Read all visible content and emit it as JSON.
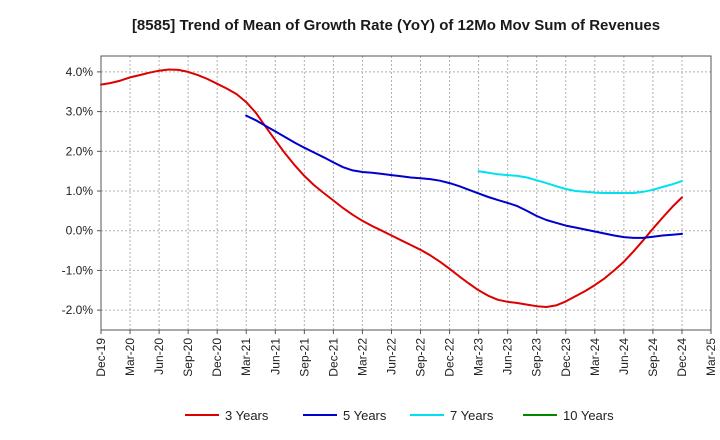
{
  "chart_data": {
    "type": "line",
    "title": "[8585]  Trend of Mean of Growth Rate (YoY) of 12Mo Mov Sum of Revenues",
    "xlabel": "",
    "ylabel": "",
    "x_tick_labels": [
      "Dec-19",
      "Mar-20",
      "Jun-20",
      "Sep-20",
      "Dec-20",
      "Mar-21",
      "Jun-21",
      "Sep-21",
      "Dec-21",
      "Mar-22",
      "Jun-22",
      "Sep-22",
      "Dec-22",
      "Mar-23",
      "Jun-23",
      "Sep-23",
      "Dec-23",
      "Mar-24",
      "Jun-24",
      "Sep-24",
      "Dec-24",
      "Mar-25"
    ],
    "x_range": [
      0,
      63
    ],
    "ylim": [
      -2.5,
      4.4
    ],
    "y_ticks": [
      -2.0,
      -1.0,
      0.0,
      1.0,
      2.0,
      3.0,
      4.0
    ],
    "y_tick_labels": [
      "-2.0%",
      "-1.0%",
      "0.0%",
      "1.0%",
      "2.0%",
      "3.0%",
      "4.0%"
    ],
    "grid": true,
    "legend_position": "bottom",
    "series": [
      {
        "name": "3 Years",
        "color": "#dd0000",
        "x": [
          0,
          1,
          2,
          3,
          4,
          5,
          6,
          7,
          8,
          9,
          10,
          11,
          12,
          13,
          14,
          15,
          16,
          17,
          18,
          19,
          20,
          21,
          22,
          23,
          24,
          25,
          26,
          27,
          28,
          29,
          30,
          31,
          32,
          33,
          34,
          35,
          36,
          37,
          38,
          39,
          40,
          41,
          42,
          43,
          44,
          45,
          46,
          47,
          48,
          49,
          50,
          51,
          52,
          53,
          54,
          55,
          56,
          57,
          58,
          59,
          60
        ],
        "values": [
          3.68,
          3.72,
          3.78,
          3.86,
          3.92,
          3.98,
          4.03,
          4.06,
          4.05,
          4.0,
          3.92,
          3.82,
          3.7,
          3.58,
          3.44,
          3.24,
          2.97,
          2.62,
          2.28,
          1.95,
          1.65,
          1.38,
          1.15,
          0.95,
          0.76,
          0.57,
          0.4,
          0.25,
          0.12,
          0.0,
          -0.12,
          -0.24,
          -0.36,
          -0.48,
          -0.62,
          -0.78,
          -0.96,
          -1.15,
          -1.33,
          -1.5,
          -1.64,
          -1.74,
          -1.79,
          -1.82,
          -1.86,
          -1.9,
          -1.92,
          -1.88,
          -1.78,
          -1.65,
          -1.52,
          -1.37,
          -1.2,
          -1.0,
          -0.78,
          -0.52,
          -0.24,
          0.05,
          0.33,
          0.6,
          0.84
        ]
      },
      {
        "name": "5 Years",
        "color": "#0000cc",
        "x": [
          15,
          16,
          17,
          18,
          19,
          20,
          21,
          22,
          23,
          24,
          25,
          26,
          27,
          28,
          29,
          30,
          31,
          32,
          33,
          34,
          35,
          36,
          37,
          38,
          39,
          40,
          41,
          42,
          43,
          44,
          45,
          46,
          47,
          48,
          49,
          50,
          51,
          52,
          53,
          54,
          55,
          56,
          57,
          58,
          59,
          60
        ],
        "values": [
          2.9,
          2.78,
          2.64,
          2.5,
          2.36,
          2.22,
          2.09,
          1.97,
          1.85,
          1.72,
          1.6,
          1.52,
          1.48,
          1.46,
          1.43,
          1.4,
          1.37,
          1.34,
          1.32,
          1.3,
          1.26,
          1.2,
          1.12,
          1.03,
          0.94,
          0.85,
          0.77,
          0.7,
          0.62,
          0.5,
          0.37,
          0.27,
          0.2,
          0.13,
          0.08,
          0.03,
          -0.02,
          -0.07,
          -0.12,
          -0.16,
          -0.18,
          -0.18,
          -0.15,
          -0.12,
          -0.1,
          -0.08
        ]
      },
      {
        "name": "7 Years",
        "color": "#00e0ee",
        "x": [
          39,
          40,
          41,
          42,
          43,
          44,
          45,
          46,
          47,
          48,
          49,
          50,
          51,
          52,
          53,
          54,
          55,
          56,
          57,
          58,
          59,
          60
        ],
        "values": [
          1.5,
          1.46,
          1.42,
          1.4,
          1.38,
          1.34,
          1.27,
          1.2,
          1.12,
          1.05,
          1.0,
          0.98,
          0.96,
          0.95,
          0.95,
          0.95,
          0.95,
          0.98,
          1.03,
          1.1,
          1.17,
          1.25
        ]
      },
      {
        "name": "10 Years",
        "color": "#008800",
        "x": [],
        "values": []
      }
    ]
  }
}
